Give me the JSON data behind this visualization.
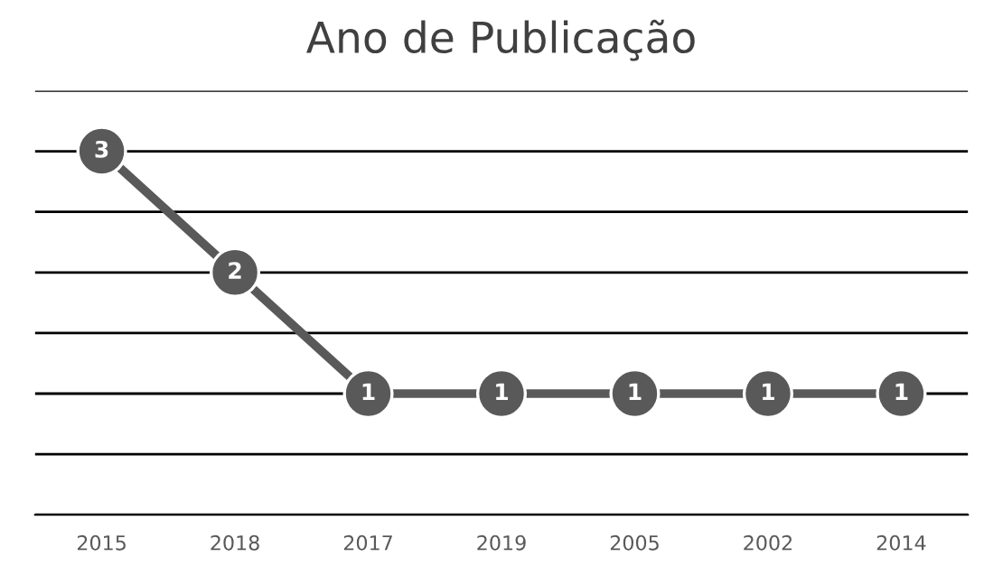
{
  "chart_data": {
    "type": "line",
    "title": "Ano de Publicação",
    "categories": [
      "2015",
      "2018",
      "2017",
      "2019",
      "2005",
      "2002",
      "2014"
    ],
    "series": [
      {
        "color": "#595959",
        "values": [
          3,
          2,
          1,
          1,
          1,
          1,
          1
        ]
      }
    ],
    "ylim": [
      0,
      3.5
    ],
    "yticks": [
      {
        "value": 0,
        "label": null
      },
      {
        "value": 0.5,
        "label": null
      },
      {
        "value": 1,
        "label": null
      },
      {
        "value": 1.5,
        "label": null
      },
      {
        "value": 2,
        "label": null
      },
      {
        "value": 2.5,
        "label": null
      },
      {
        "value": 3,
        "label": null
      },
      {
        "value": 3.5,
        "label": null
      }
    ],
    "tick_labels": "x",
    "grid": "y",
    "marker": "circle",
    "line_style": "solid",
    "data_labels": true
  }
}
